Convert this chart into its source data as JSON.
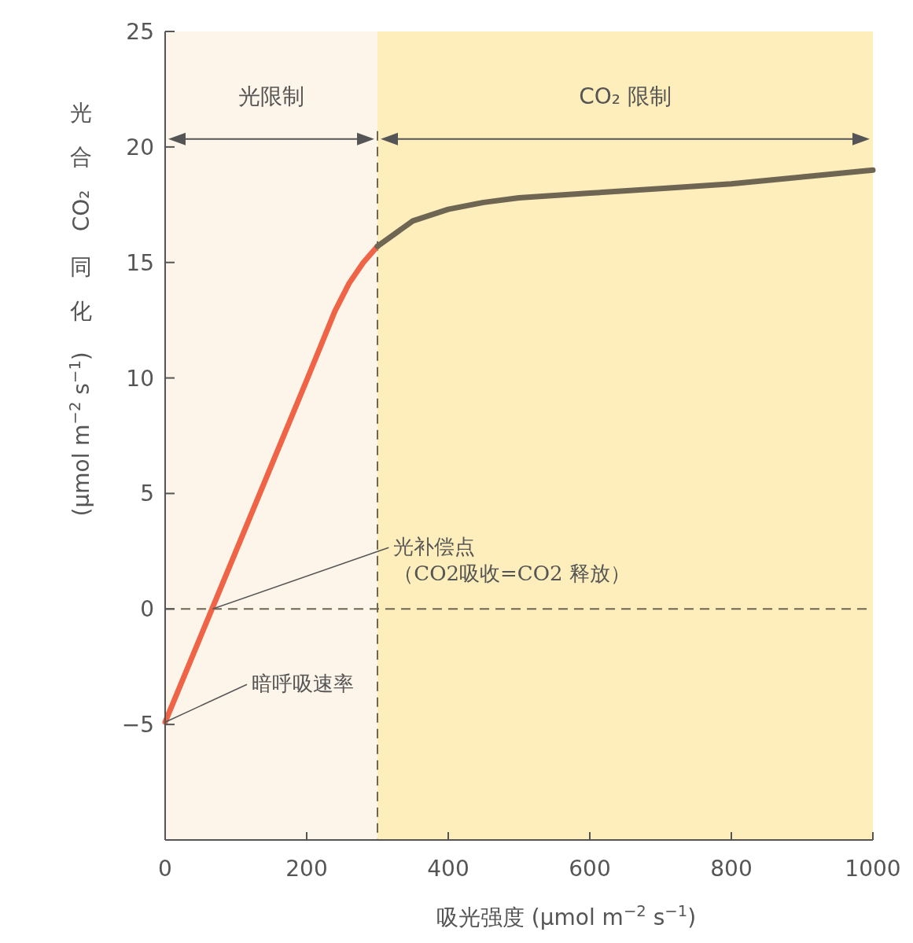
{
  "chart_data": {
    "type": "line",
    "xlabel": "吸光强度 (μmol m$^{−2}$ s$^{−1}$)",
    "ylabel": "光合CO₂同化 (μmol m$^{−2}$ s$^{−1}$)",
    "xlim": [
      0,
      1000
    ],
    "xticks": [
      0,
      200,
      400,
      600,
      800,
      1000
    ],
    "ylim": [
      -10,
      25
    ],
    "yticks": [
      -5,
      0,
      5,
      10,
      15,
      20,
      25
    ],
    "grid": false,
    "marker": "none",
    "line_style": "solid",
    "series": [
      {
        "color": "#ef6347",
        "x": [
          0,
          50,
          100,
          150,
          200,
          240,
          260,
          280,
          300
        ],
        "values": [
          -4.9,
          -1.2,
          2.5,
          6.2,
          9.9,
          12.9,
          14.1,
          15.0,
          15.7
        ]
      },
      {
        "color": "#6e6652",
        "x": [
          300,
          350,
          400,
          450,
          500,
          600,
          700,
          800,
          900,
          1000
        ],
        "values": [
          15.7,
          16.8,
          17.3,
          17.6,
          17.8,
          18.0,
          18.2,
          18.4,
          18.7,
          19.0
        ]
      }
    ],
    "ref_lines": [
      {
        "axis": "y",
        "value": 0,
        "line_style": "dashed",
        "color": "#6e6652"
      },
      {
        "axis": "x",
        "value": 300,
        "line_style": "dashed",
        "color": "#6e6652"
      }
    ],
    "bands": [
      {
        "axis": "x",
        "from": 0,
        "to": 300,
        "label": "光限制",
        "color": "#fdf5e9"
      },
      {
        "axis": "x",
        "from": 300,
        "to": 1000,
        "label": "CO₂ 限制",
        "color": "#fdeebb"
      }
    ],
    "annotations": [
      {
        "text": "光补偿点（CO2吸收=CO2 释放）",
        "x": 67,
        "y": 0
      },
      {
        "text": "暗呼吸速率",
        "x": 0,
        "y": -4.9
      }
    ]
  }
}
